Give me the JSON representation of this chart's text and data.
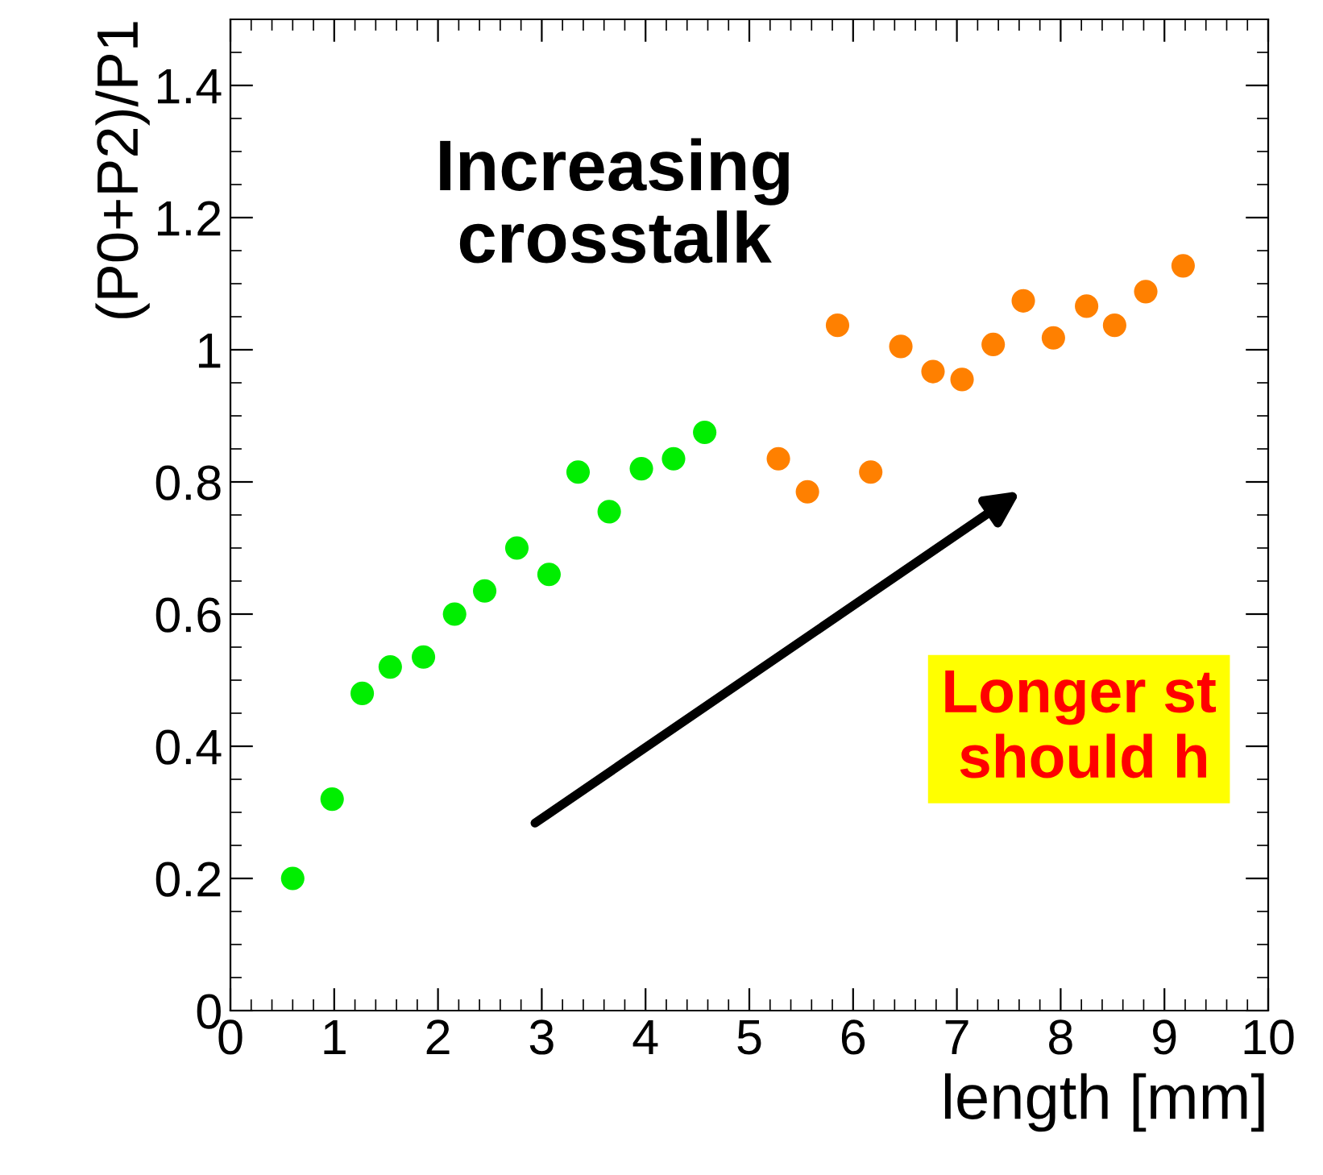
{
  "chart_data": {
    "type": "scatter",
    "xlabel": "length [mm]",
    "ylabel": "(P0+P2)/P1",
    "xlim": [
      0,
      10
    ],
    "ylim": [
      0,
      1.5
    ],
    "xticks": [
      0,
      1,
      2,
      3,
      4,
      5,
      6,
      7,
      8,
      9,
      10
    ],
    "yticks": [
      0,
      0.2,
      0.4,
      0.6,
      0.8,
      1,
      1.2,
      1.4
    ],
    "marker": "circle",
    "grid": false,
    "legend": false,
    "annotations": [
      "Increasing\ncrosstalk",
      "Longer st\n should h"
    ],
    "series": [
      {
        "color": "#00ee00",
        "x": [
          0.6,
          0.98,
          1.27,
          1.54,
          1.86,
          2.16,
          2.45,
          2.76,
          3.07,
          3.35,
          3.65,
          3.96,
          4.27,
          4.57
        ],
        "values": [
          0.2,
          0.32,
          0.48,
          0.52,
          0.535,
          0.6,
          0.635,
          0.7,
          0.66,
          0.815,
          0.755,
          0.82,
          0.835,
          0.875
        ]
      },
      {
        "color": "#ff8000",
        "x": [
          5.28,
          5.56,
          5.85,
          6.17,
          6.46,
          6.77,
          7.05,
          7.35,
          7.64,
          7.93,
          8.25,
          8.52,
          8.82,
          9.18
        ],
        "values": [
          0.835,
          0.785,
          1.037,
          0.815,
          1.005,
          0.967,
          0.955,
          1.008,
          1.074,
          1.018,
          1.066,
          1.037,
          1.088,
          1.127
        ]
      }
    ]
  }
}
